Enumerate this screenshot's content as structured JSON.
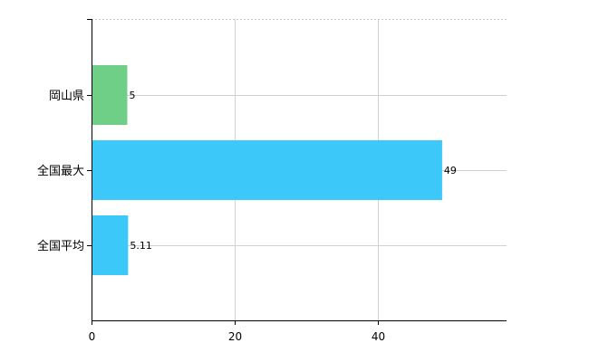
{
  "chart_data": {
    "type": "bar",
    "orientation": "horizontal",
    "categories": [
      "岡山県",
      "全国最大",
      "全国平均"
    ],
    "values": [
      5,
      49,
      5.11
    ],
    "value_labels": [
      "5",
      "49",
      "5.11"
    ],
    "bar_colors": [
      "#6fcf86",
      "#3cc8f8",
      "#3cc8f8"
    ],
    "xlim": [
      0,
      58
    ],
    "x_ticks": [
      0,
      20,
      40
    ],
    "x_tick_labels": [
      "0",
      "20",
      "40"
    ],
    "grid": true,
    "legend": "none"
  }
}
